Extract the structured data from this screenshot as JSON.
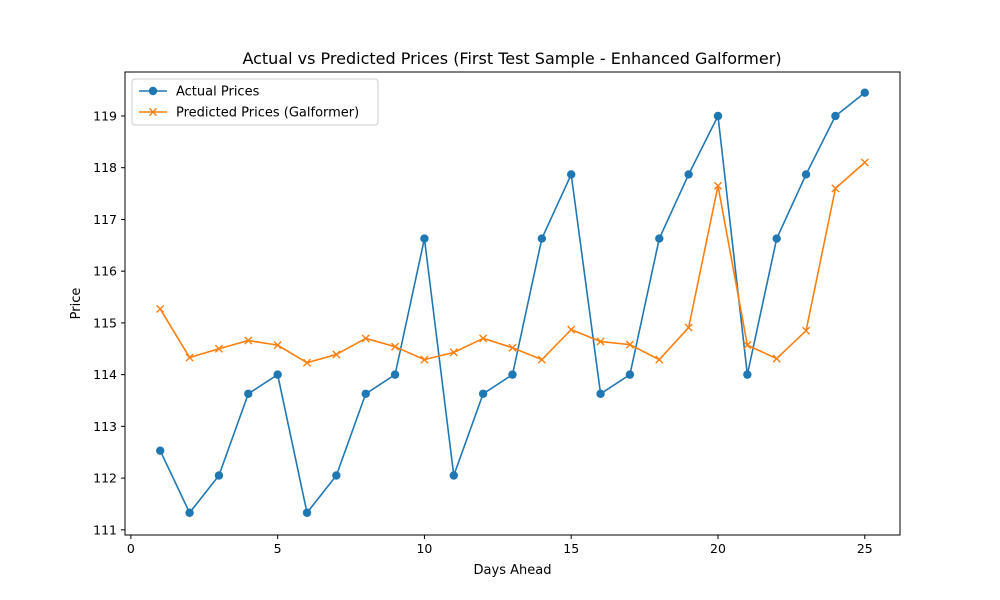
{
  "chart_data": {
    "type": "line",
    "title": "Actual vs Predicted Prices (First Test Sample - Enhanced Galformer)",
    "xlabel": "Days Ahead",
    "ylabel": "Price",
    "xlim": [
      -0.2,
      26.2
    ],
    "ylim": [
      110.9,
      119.85
    ],
    "xticks": [
      0,
      5,
      10,
      15,
      20,
      25
    ],
    "yticks": [
      111,
      112,
      113,
      114,
      115,
      116,
      117,
      118,
      119
    ],
    "grid": false,
    "legend": "upper-left",
    "x": [
      1,
      2,
      3,
      4,
      5,
      6,
      7,
      8,
      9,
      10,
      11,
      12,
      13,
      14,
      15,
      16,
      17,
      18,
      19,
      20,
      21,
      22,
      23,
      24,
      25
    ],
    "series": [
      {
        "name": "Actual Prices",
        "color": "#1f77b4",
        "marker": "circle",
        "values": [
          112.53,
          111.33,
          112.05,
          113.63,
          114.0,
          111.33,
          112.05,
          113.63,
          114.0,
          116.63,
          112.05,
          113.63,
          114.0,
          116.63,
          117.87,
          113.63,
          114.0,
          116.63,
          117.87,
          119.0,
          114.0,
          116.63,
          117.87,
          119.0,
          119.45
        ]
      },
      {
        "name": "Predicted Prices (Galformer)",
        "color": "#ff7f0e",
        "marker": "x",
        "values": [
          115.27,
          114.33,
          114.5,
          114.66,
          114.57,
          114.23,
          114.39,
          114.7,
          114.54,
          114.29,
          114.43,
          114.7,
          114.52,
          114.29,
          114.87,
          114.64,
          114.58,
          114.29,
          114.91,
          117.65,
          114.57,
          114.31,
          114.85,
          117.6,
          118.1
        ]
      }
    ]
  }
}
